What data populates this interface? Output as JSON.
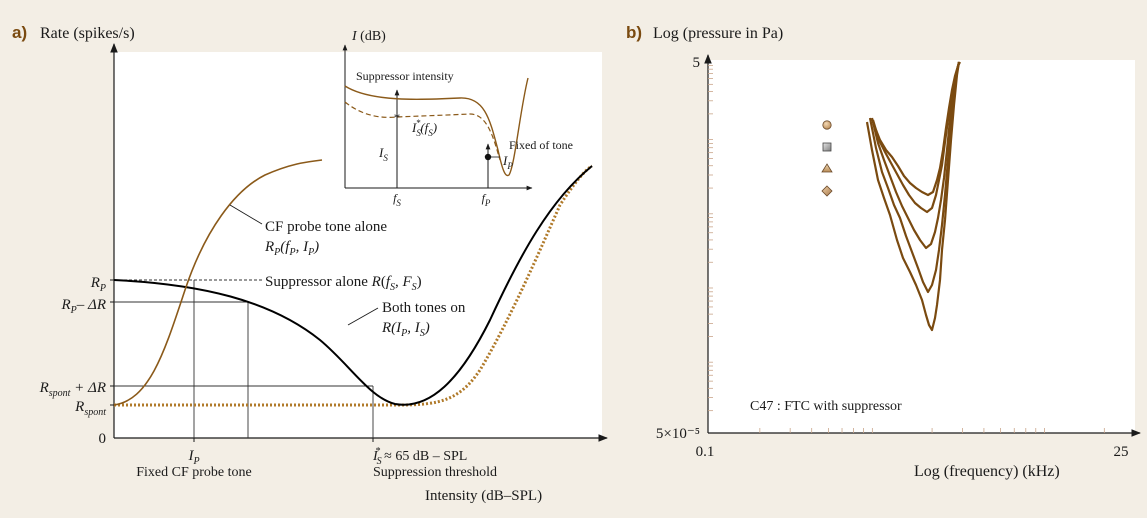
{
  "panel_a": {
    "letter": "a)",
    "y_axis_label": "Rate (spikes/s)",
    "x_axis_label": "Intensity (dB–SPL)",
    "y_ticks": {
      "rp": "R_P",
      "rp_minus": "R_P–ΔR",
      "rspont_plus": "R_spont + ΔR",
      "rspont": "R_spont",
      "zero": "0"
    },
    "x_ticks": {
      "ip": "I_P",
      "ip_caption": "Fixed CF probe tone",
      "is_star": "I_S* ≈ 65 dB–SPL",
      "is_caption": "Suppression threshold"
    },
    "labels": {
      "cf_line1": "CF probe tone alone",
      "cf_line2": "R_P(f_P, I_P)",
      "supp": "Suppressor alone R(f_S, F_S)",
      "both_line1": "Both tones on",
      "both_line2": "R(I_P, I_S)"
    },
    "inset": {
      "y_label": "I (dB)",
      "title": "Suppressor intensity",
      "is_star_label": "I_S*(f_S)",
      "is_label": "I_S",
      "fs_label": "f_S",
      "fp_label": "f_P",
      "fixed_tone": "Fixed of tone",
      "ip_label": "I_P"
    },
    "colors": {
      "probe": "#8b5a1a",
      "both": "#000000",
      "spont_dotted": "#b07a2a"
    }
  },
  "panel_b": {
    "letter": "b)",
    "y_axis_label": "Log (pressure in Pa)",
    "x_axis_label": "Log (frequency) (kHz)",
    "y_top": "5",
    "y_bottom": "5×10⁻⁵",
    "x_left": "0.1",
    "x_right": "25",
    "caption": "C47 : FTC with suppressor",
    "legend_markers": [
      "circle",
      "square",
      "triangle",
      "diamond"
    ],
    "colors": {
      "curves": "#7a4a10"
    }
  }
}
